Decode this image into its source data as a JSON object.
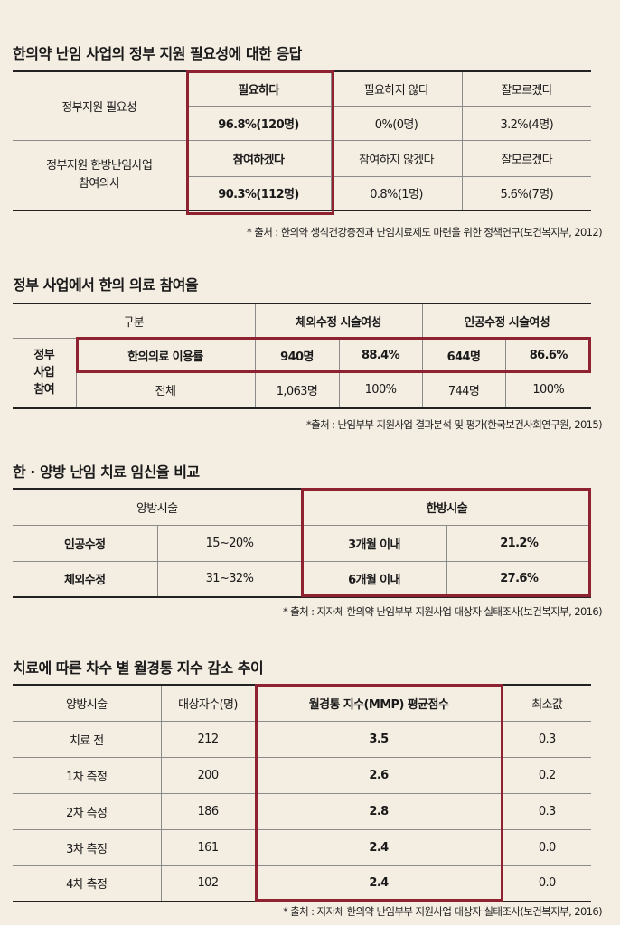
{
  "s1": {
    "title": "한의약 난임 사업의 정부 지원 필요성에 대한 응답",
    "row1_label": "정부지원 필요성",
    "row1_headers": [
      "필요하다",
      "필요하지 않다",
      "잘모르겠다"
    ],
    "row1_values": [
      "96.8%(120명)",
      "0%(0명)",
      "3.2%(4명)"
    ],
    "row2_label": "정부지원 한방난임사업\n참여의사",
    "row2_headers": [
      "참여하겠다",
      "참여하지 않겠다",
      "잘모르겠다"
    ],
    "row2_values": [
      "90.3%(112명)",
      "0.8%(1명)",
      "5.6%(7명)"
    ],
    "source": "* 출처 : 한의약 생식건강증진과 난임치료제도 마련을 위한 정책연구(보건복지부, 2012)"
  },
  "s2": {
    "title": "정부 사업에서 한의 의료 참여율",
    "header": [
      "구분",
      "체외수정 시술여성",
      "인공수정 시술여성"
    ],
    "side_label": "정부\n사업\n참여",
    "rows": [
      {
        "label": "한의의료 이용률",
        "cells": [
          "940명",
          "88.4%",
          "644명",
          "86.6%"
        ]
      },
      {
        "label": "전체",
        "cells": [
          "1,063명",
          "100%",
          "744명",
          "100%"
        ]
      }
    ],
    "source": "*출처 : 난임부부 지원사업 결과분석 및 평가(한국보건사회연구원, 2015)"
  },
  "s3": {
    "title": "한 · 양방 난임 치료 임신율 비교",
    "left_header": "양방시술",
    "right_header": "한방시술",
    "rows": [
      {
        "label": "인공수정",
        "value": "15~20%",
        "period": "3개월 이내",
        "rate": "21.2%"
      },
      {
        "label": "체외수정",
        "value": "31~32%",
        "period": "6개월 이내",
        "rate": "27.6%"
      }
    ],
    "source": "* 출처 : 지자체 한의약 난임부부 지원사업 대상자 실태조사(보건복지부, 2016)"
  },
  "s4": {
    "title": "치료에 따른 차수 별 월경통 지수 감소 추이",
    "header": [
      "양방시술",
      "대상자수(명)",
      "월경통 지수(MMP) 평균점수",
      "최소값"
    ],
    "rows": [
      [
        "치료 전",
        "212",
        "3.5",
        "0.3"
      ],
      [
        "1차 측정",
        "200",
        "2.6",
        "0.2"
      ],
      [
        "2차 측정",
        "186",
        "2.8",
        "0.3"
      ],
      [
        "3차 측정",
        "161",
        "2.4",
        "0.0"
      ],
      [
        "4차 측정",
        "102",
        "2.4",
        "0.0"
      ]
    ],
    "source": "* 출처 : 지자체 한의약 난임부부 지원사업 대상자 실태조사(보건복지부, 2016)"
  },
  "colors": {
    "background": "#f4ede2",
    "highlight": "#8e2230",
    "text": "#1a1a1a"
  }
}
